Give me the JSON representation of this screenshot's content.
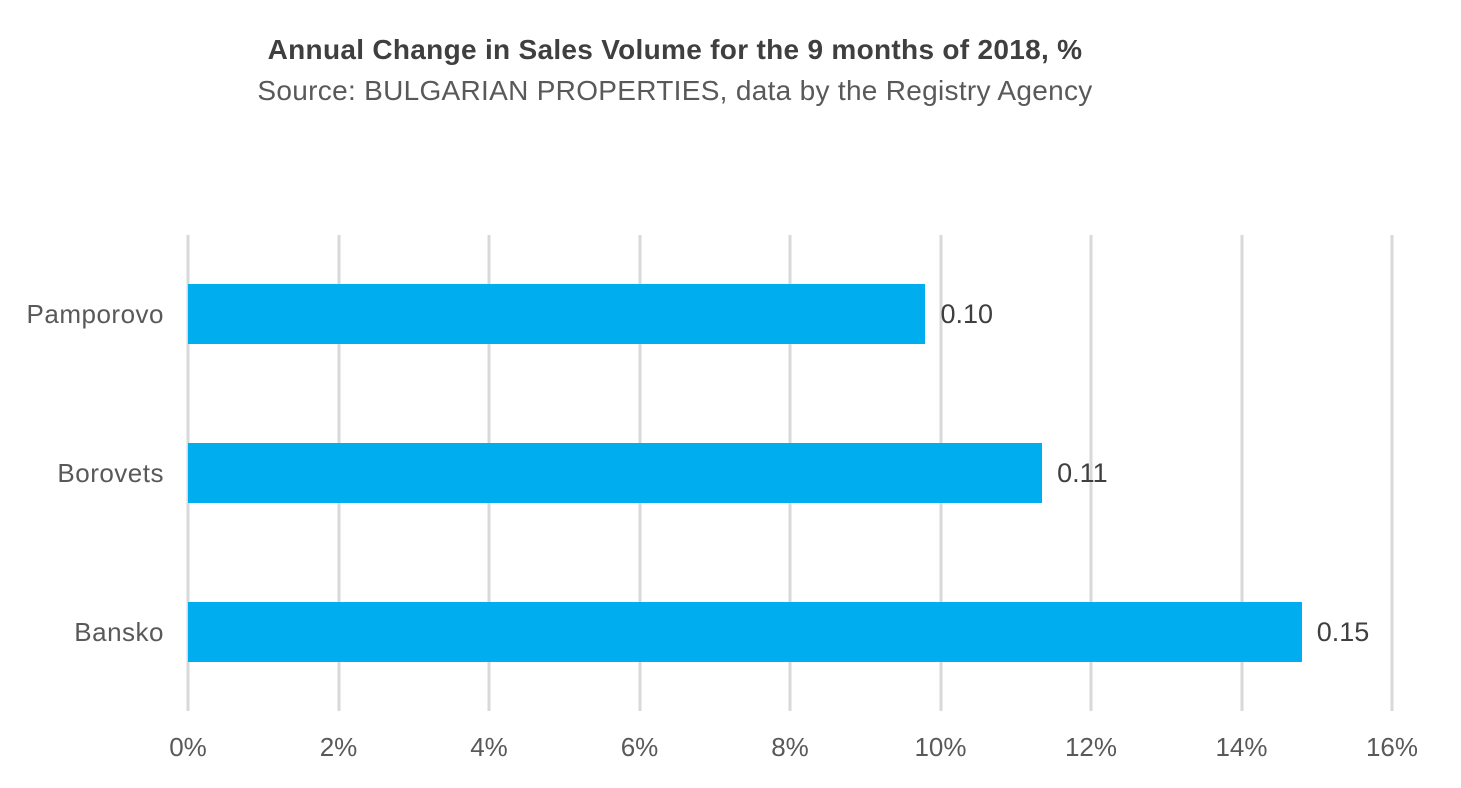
{
  "colors": {
    "bar": "#00aeef",
    "gridline": "#d9d9d9",
    "title_text": "#3f3f3f",
    "subtitle_text": "#595959",
    "category_text": "#595959",
    "tick_text": "#595959",
    "data_label_text": "#3f3f3f",
    "background": "#ffffff"
  },
  "chart_data": {
    "type": "bar",
    "orientation": "horizontal",
    "title": "Annual Change in Sales Volume for the 9 months of 2018, %",
    "subtitle": "Source: BULGARIAN PROPERTIES, data by the Registry Agency",
    "categories": [
      "Pamporovo",
      "Borovets",
      "Bansko"
    ],
    "data_labels": [
      "0.10",
      "0.11",
      "0.15"
    ],
    "values": [
      0.1,
      0.11,
      0.15
    ],
    "bar_lengths_percent_est": [
      9.8,
      11.35,
      14.8
    ],
    "x_axis": {
      "min": 0,
      "max": 16,
      "step": 2,
      "unit": "%",
      "tick_labels": [
        "0%",
        "2%",
        "4%",
        "6%",
        "8%",
        "10%",
        "12%",
        "14%",
        "16%"
      ]
    },
    "grid": "vertical-gridlines-only",
    "legend": false,
    "ylabel": "",
    "xlabel": ""
  }
}
